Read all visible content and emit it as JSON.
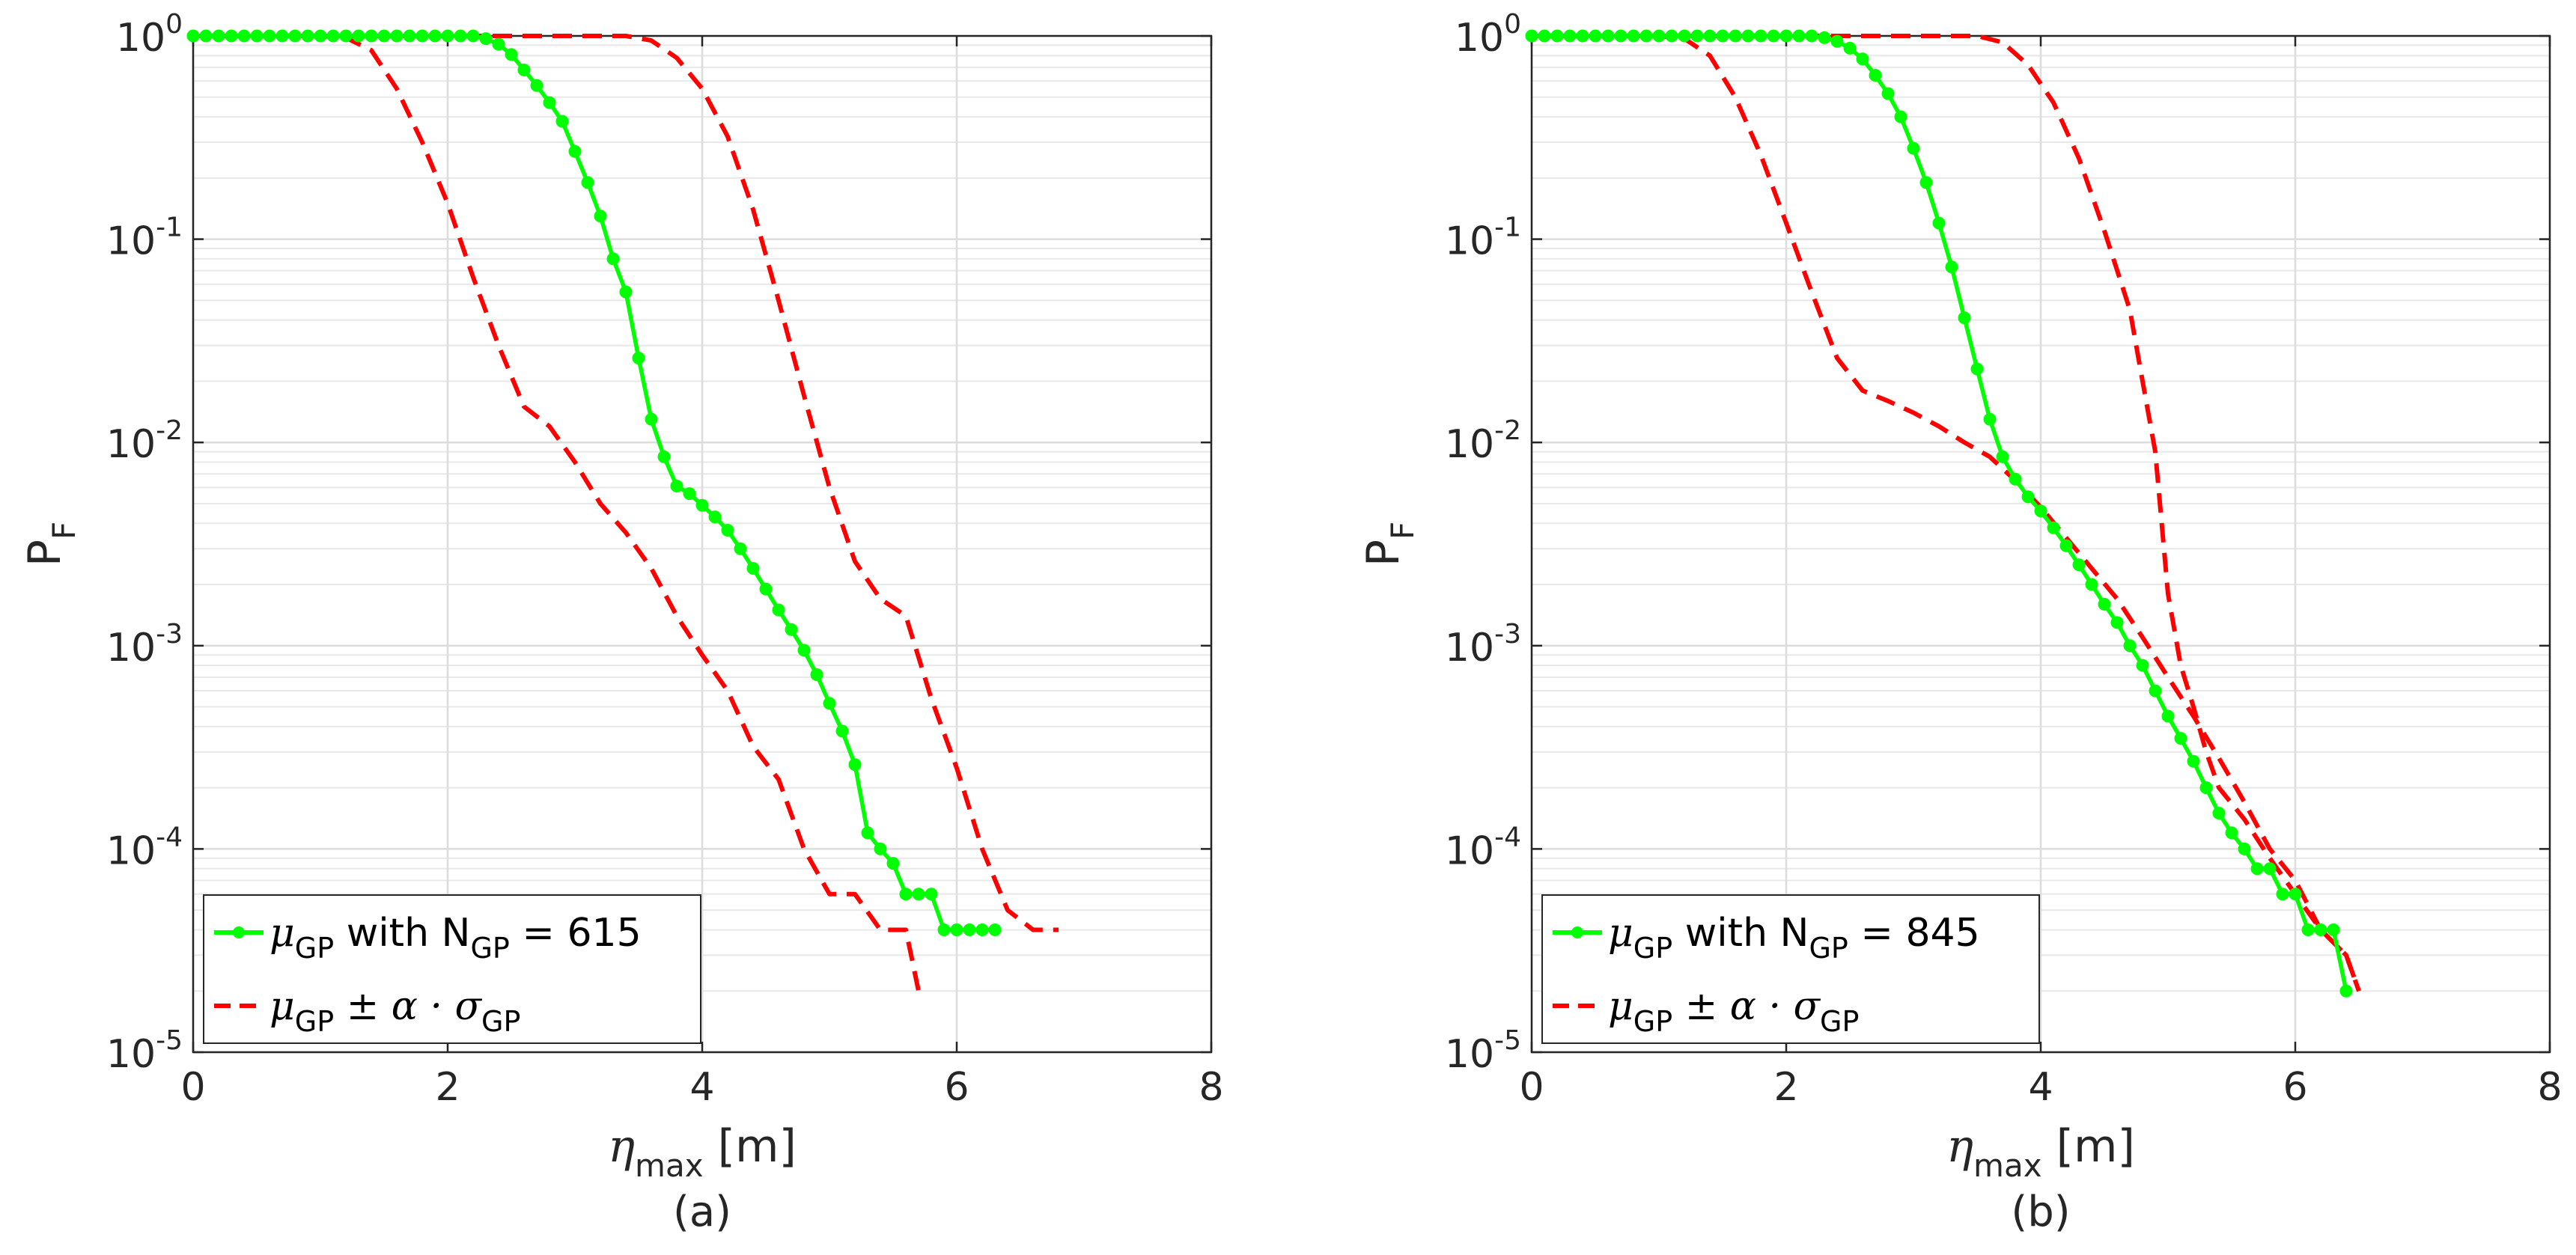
{
  "chart_data": [
    {
      "type": "line",
      "caption": "(a)",
      "xlabel": {
        "symbol": "η",
        "sub": "max",
        "unit": "[m]"
      },
      "ylabel": {
        "main": "P",
        "sub": "F"
      },
      "xlim": [
        0,
        8
      ],
      "ylim": [
        1e-05,
        1
      ],
      "yscale": "log",
      "grid": true,
      "legend_position": "bottom-left",
      "x_ticks": [
        "0",
        "2",
        "4",
        "6",
        "8"
      ],
      "y_ticks": [
        {
          "base": "10",
          "exp": "0"
        },
        {
          "base": "10",
          "exp": "-1"
        },
        {
          "base": "10",
          "exp": "-2"
        },
        {
          "base": "10",
          "exp": "-3"
        },
        {
          "base": "10",
          "exp": "-4"
        },
        {
          "base": "10",
          "exp": "-5"
        }
      ],
      "legend": [
        {
          "mu": "μ",
          "sub": "GP",
          "text": " with N",
          "sub2": "GP",
          "tail": " = 615"
        },
        {
          "mu": "μ",
          "sub": "GP",
          "text": " ± α · σ",
          "sub2": "GP",
          "tail": ""
        }
      ],
      "series": [
        {
          "name": "mean",
          "style": "solid-markers",
          "color": "#00ff00",
          "points": [
            [
              0,
              1
            ],
            [
              0.1,
              1
            ],
            [
              0.2,
              1
            ],
            [
              0.3,
              1
            ],
            [
              0.4,
              1
            ],
            [
              0.5,
              1
            ],
            [
              0.6,
              1
            ],
            [
              0.7,
              1
            ],
            [
              0.8,
              1
            ],
            [
              0.9,
              1
            ],
            [
              1.0,
              1
            ],
            [
              1.1,
              1
            ],
            [
              1.2,
              1
            ],
            [
              1.3,
              1
            ],
            [
              1.4,
              1
            ],
            [
              1.5,
              1
            ],
            [
              1.6,
              1
            ],
            [
              1.7,
              1
            ],
            [
              1.8,
              1
            ],
            [
              1.9,
              1
            ],
            [
              2.0,
              1
            ],
            [
              2.1,
              1
            ],
            [
              2.2,
              1
            ],
            [
              2.3,
              0.97
            ],
            [
              2.4,
              0.91
            ],
            [
              2.5,
              0.81
            ],
            [
              2.6,
              0.68
            ],
            [
              2.7,
              0.57
            ],
            [
              2.8,
              0.47
            ],
            [
              2.9,
              0.38
            ],
            [
              3.0,
              0.27
            ],
            [
              3.1,
              0.19
            ],
            [
              3.2,
              0.13
            ],
            [
              3.3,
              0.08
            ],
            [
              3.4,
              0.055
            ],
            [
              3.5,
              0.026
            ],
            [
              3.6,
              0.013
            ],
            [
              3.7,
              0.0085
            ],
            [
              3.8,
              0.0061
            ],
            [
              3.9,
              0.0056
            ],
            [
              4.0,
              0.0049
            ],
            [
              4.1,
              0.0043
            ],
            [
              4.2,
              0.0037
            ],
            [
              4.3,
              0.003
            ],
            [
              4.4,
              0.0024
            ],
            [
              4.5,
              0.0019
            ],
            [
              4.6,
              0.0015
            ],
            [
              4.7,
              0.0012
            ],
            [
              4.8,
              0.00095
            ],
            [
              4.9,
              0.00072
            ],
            [
              5.0,
              0.00052
            ],
            [
              5.1,
              0.00038
            ],
            [
              5.2,
              0.00026
            ],
            [
              5.3,
              0.00012
            ],
            [
              5.4,
              0.0001
            ],
            [
              5.5,
              8.5e-05
            ],
            [
              5.6,
              6e-05
            ],
            [
              5.7,
              6e-05
            ],
            [
              5.8,
              6e-05
            ],
            [
              5.9,
              4e-05
            ],
            [
              6.0,
              4e-05
            ],
            [
              6.1,
              4e-05
            ],
            [
              6.2,
              4e-05
            ],
            [
              6.3,
              4e-05
            ]
          ]
        },
        {
          "name": "upper",
          "style": "dashed",
          "color": "#ff0000",
          "points": [
            [
              0,
              1
            ],
            [
              2.0,
              1
            ],
            [
              3.0,
              1
            ],
            [
              3.4,
              1
            ],
            [
              3.6,
              0.95
            ],
            [
              3.8,
              0.78
            ],
            [
              4.0,
              0.55
            ],
            [
              4.2,
              0.32
            ],
            [
              4.4,
              0.14
            ],
            [
              4.6,
              0.05
            ],
            [
              4.8,
              0.017
            ],
            [
              5.0,
              0.006
            ],
            [
              5.2,
              0.0026
            ],
            [
              5.4,
              0.0017
            ],
            [
              5.6,
              0.0014
            ],
            [
              5.8,
              0.00055
            ],
            [
              6.0,
              0.00025
            ],
            [
              6.2,
              0.0001
            ],
            [
              6.4,
              5e-05
            ],
            [
              6.6,
              4e-05
            ],
            [
              6.8,
              4e-05
            ]
          ]
        },
        {
          "name": "lower",
          "style": "dashed",
          "color": "#ff0000",
          "points": [
            [
              0,
              1
            ],
            [
              1.0,
              1
            ],
            [
              1.2,
              0.98
            ],
            [
              1.4,
              0.85
            ],
            [
              1.6,
              0.55
            ],
            [
              1.8,
              0.3
            ],
            [
              2.0,
              0.15
            ],
            [
              2.2,
              0.065
            ],
            [
              2.4,
              0.03
            ],
            [
              2.6,
              0.015
            ],
            [
              2.8,
              0.012
            ],
            [
              3.0,
              0.008
            ],
            [
              3.2,
              0.005
            ],
            [
              3.4,
              0.0036
            ],
            [
              3.6,
              0.0024
            ],
            [
              3.8,
              0.0014
            ],
            [
              4.0,
              0.0009
            ],
            [
              4.2,
              0.0006
            ],
            [
              4.4,
              0.00032
            ],
            [
              4.6,
              0.00022
            ],
            [
              4.8,
              0.0001
            ],
            [
              5.0,
              6e-05
            ],
            [
              5.2,
              6e-05
            ],
            [
              5.4,
              4e-05
            ],
            [
              5.6,
              4e-05
            ],
            [
              5.7,
              2e-05
            ]
          ]
        }
      ]
    },
    {
      "type": "line",
      "caption": "(b)",
      "xlabel": {
        "symbol": "η",
        "sub": "max",
        "unit": "[m]"
      },
      "ylabel": {
        "main": "P",
        "sub": "F"
      },
      "xlim": [
        0,
        8
      ],
      "ylim": [
        1e-05,
        1
      ],
      "yscale": "log",
      "grid": true,
      "legend_position": "bottom-left",
      "x_ticks": [
        "0",
        "2",
        "4",
        "6",
        "8"
      ],
      "y_ticks": [
        {
          "base": "10",
          "exp": "0"
        },
        {
          "base": "10",
          "exp": "-1"
        },
        {
          "base": "10",
          "exp": "-2"
        },
        {
          "base": "10",
          "exp": "-3"
        },
        {
          "base": "10",
          "exp": "-4"
        },
        {
          "base": "10",
          "exp": "-5"
        }
      ],
      "legend": [
        {
          "mu": "μ",
          "sub": "GP",
          "text": " with N",
          "sub2": "GP",
          "tail": " = 845"
        },
        {
          "mu": "μ",
          "sub": "GP",
          "text": " ± α · σ",
          "sub2": "GP",
          "tail": ""
        }
      ],
      "series": [
        {
          "name": "mean",
          "style": "solid-markers",
          "color": "#00ff00",
          "points": [
            [
              0,
              1
            ],
            [
              0.1,
              1
            ],
            [
              0.2,
              1
            ],
            [
              0.3,
              1
            ],
            [
              0.4,
              1
            ],
            [
              0.5,
              1
            ],
            [
              0.6,
              1
            ],
            [
              0.7,
              1
            ],
            [
              0.8,
              1
            ],
            [
              0.9,
              1
            ],
            [
              1.0,
              1
            ],
            [
              1.1,
              1
            ],
            [
              1.2,
              1
            ],
            [
              1.3,
              1
            ],
            [
              1.4,
              1
            ],
            [
              1.5,
              1
            ],
            [
              1.6,
              1
            ],
            [
              1.7,
              1
            ],
            [
              1.8,
              1
            ],
            [
              1.9,
              1
            ],
            [
              2.0,
              1
            ],
            [
              2.1,
              1
            ],
            [
              2.2,
              1
            ],
            [
              2.3,
              0.98
            ],
            [
              2.4,
              0.94
            ],
            [
              2.5,
              0.87
            ],
            [
              2.6,
              0.77
            ],
            [
              2.7,
              0.64
            ],
            [
              2.8,
              0.52
            ],
            [
              2.9,
              0.4
            ],
            [
              3.0,
              0.28
            ],
            [
              3.1,
              0.19
            ],
            [
              3.2,
              0.12
            ],
            [
              3.3,
              0.073
            ],
            [
              3.4,
              0.041
            ],
            [
              3.5,
              0.023
            ],
            [
              3.6,
              0.013
            ],
            [
              3.7,
              0.0085
            ],
            [
              3.8,
              0.0066
            ],
            [
              3.9,
              0.0054
            ],
            [
              4.0,
              0.0046
            ],
            [
              4.1,
              0.0038
            ],
            [
              4.2,
              0.0031
            ],
            [
              4.3,
              0.0025
            ],
            [
              4.4,
              0.002
            ],
            [
              4.5,
              0.0016
            ],
            [
              4.6,
              0.0013
            ],
            [
              4.7,
              0.001
            ],
            [
              4.8,
              0.0008
            ],
            [
              4.9,
              0.0006
            ],
            [
              5.0,
              0.00045
            ],
            [
              5.1,
              0.00035
            ],
            [
              5.2,
              0.00027
            ],
            [
              5.3,
              0.0002
            ],
            [
              5.4,
              0.00015
            ],
            [
              5.5,
              0.00012
            ],
            [
              5.6,
              0.0001
            ],
            [
              5.7,
              8e-05
            ],
            [
              5.8,
              8e-05
            ],
            [
              5.9,
              6e-05
            ],
            [
              6.0,
              6e-05
            ],
            [
              6.1,
              4e-05
            ],
            [
              6.2,
              4e-05
            ],
            [
              6.3,
              4e-05
            ],
            [
              6.4,
              2e-05
            ]
          ]
        },
        {
          "name": "upper",
          "style": "dashed",
          "color": "#ff0000",
          "points": [
            [
              0,
              1
            ],
            [
              2.0,
              1
            ],
            [
              3.0,
              1
            ],
            [
              3.5,
              1
            ],
            [
              3.7,
              0.93
            ],
            [
              3.9,
              0.72
            ],
            [
              4.1,
              0.47
            ],
            [
              4.3,
              0.25
            ],
            [
              4.5,
              0.11
            ],
            [
              4.7,
              0.045
            ],
            [
              4.8,
              0.02
            ],
            [
              4.9,
              0.009
            ],
            [
              5.0,
              0.0018
            ],
            [
              5.1,
              0.0008
            ],
            [
              5.2,
              0.0005
            ],
            [
              5.3,
              0.0003
            ],
            [
              5.4,
              0.0002
            ],
            [
              5.6,
              0.00014
            ],
            [
              5.8,
              9e-05
            ],
            [
              6.0,
              6e-05
            ],
            [
              6.2,
              4e-05
            ],
            [
              6.4,
              3e-05
            ],
            [
              6.5,
              2e-05
            ]
          ]
        },
        {
          "name": "lower",
          "style": "dashed",
          "color": "#ff0000",
          "points": [
            [
              0,
              1
            ],
            [
              1.0,
              1
            ],
            [
              1.2,
              0.97
            ],
            [
              1.4,
              0.8
            ],
            [
              1.6,
              0.5
            ],
            [
              1.8,
              0.26
            ],
            [
              2.0,
              0.12
            ],
            [
              2.2,
              0.055
            ],
            [
              2.4,
              0.026
            ],
            [
              2.6,
              0.018
            ],
            [
              2.8,
              0.016
            ],
            [
              3.0,
              0.014
            ],
            [
              3.2,
              0.012
            ],
            [
              3.4,
              0.01
            ],
            [
              3.6,
              0.0085
            ],
            [
              3.8,
              0.0065
            ],
            [
              4.0,
              0.0048
            ],
            [
              4.2,
              0.0034
            ],
            [
              4.4,
              0.0024
            ],
            [
              4.6,
              0.0017
            ],
            [
              4.8,
              0.0011
            ],
            [
              5.0,
              0.0007
            ],
            [
              5.2,
              0.00045
            ],
            [
              5.4,
              0.00028
            ],
            [
              5.6,
              0.00017
            ],
            [
              5.8,
              0.0001
            ],
            [
              6.0,
              7e-05
            ],
            [
              6.2,
              4e-05
            ],
            [
              6.4,
              3e-05
            ],
            [
              6.5,
              2e-05
            ]
          ]
        }
      ]
    }
  ]
}
